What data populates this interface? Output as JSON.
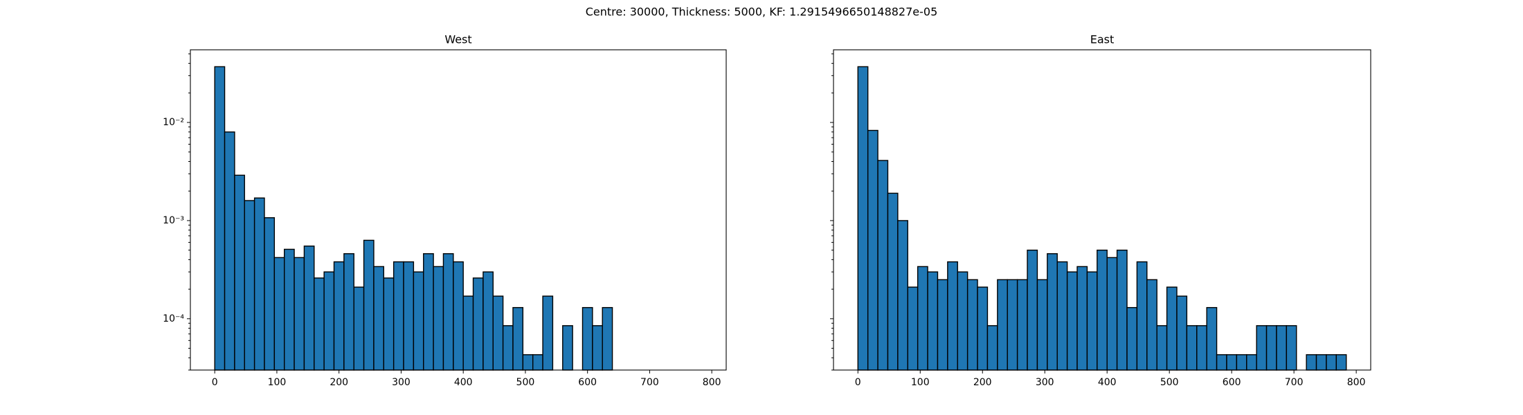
{
  "title": "Centre: 30000, Thickness: 5000, KF: 1.2915496650148827e-05",
  "chart_data": [
    {
      "type": "histogram",
      "title": "West",
      "color": "#1f77b4",
      "edgecolor": "#000000",
      "log_y": true,
      "bins": [
        0,
        16,
        32,
        48,
        64,
        80,
        96,
        112,
        128,
        144,
        160,
        176,
        192,
        208,
        224,
        240,
        256,
        272,
        288,
        304,
        320,
        336,
        352,
        368,
        384,
        400,
        416,
        432,
        448,
        464,
        480,
        496,
        512,
        528,
        544,
        560,
        576,
        592,
        608,
        624,
        640
      ],
      "values": [
        0.037,
        0.008,
        0.0029,
        0.0016,
        0.0017,
        0.00107,
        0.00042,
        0.00051,
        0.00042,
        0.00055,
        0.00026,
        0.0003,
        0.00038,
        0.00046,
        0.00021,
        0.00063,
        0.00034,
        0.00026,
        0.00038,
        0.00038,
        0.0003,
        0.00046,
        0.00034,
        0.00046,
        0.00038,
        0.00017,
        0.00026,
        0.0003,
        0.00017,
        8.5e-05,
        0.00013,
        4.3e-05,
        4.3e-05,
        0.00017,
        0,
        8.5e-05,
        0,
        0.00013,
        8.5e-05,
        0.00013
      ],
      "xlim": [
        -39.2,
        823.2
      ],
      "xticks": [
        0,
        100,
        200,
        300,
        400,
        500,
        600,
        700,
        800
      ],
      "ylim": [
        3e-05,
        0.055
      ],
      "yticks": [
        {
          "value": 0.0001,
          "label": "10⁻⁴"
        },
        {
          "value": 0.001,
          "label": "10⁻³"
        },
        {
          "value": 0.01,
          "label": "10⁻²"
        }
      ]
    },
    {
      "type": "histogram",
      "title": "East",
      "color": "#1f77b4",
      "edgecolor": "#000000",
      "log_y": true,
      "bins": [
        0,
        16,
        32,
        48,
        64,
        80,
        96,
        112,
        128,
        144,
        160,
        176,
        192,
        208,
        224,
        240,
        256,
        272,
        288,
        304,
        320,
        336,
        352,
        368,
        384,
        400,
        416,
        432,
        448,
        464,
        480,
        496,
        512,
        528,
        544,
        560,
        576,
        592,
        608,
        624,
        640,
        656,
        672,
        688,
        704,
        720,
        736,
        752,
        768,
        784
      ],
      "values": [
        0.037,
        0.0083,
        0.0041,
        0.0019,
        0.001,
        0.00021,
        0.00034,
        0.0003,
        0.00025,
        0.00038,
        0.0003,
        0.00025,
        0.00021,
        8.5e-05,
        0.00025,
        0.00025,
        0.00025,
        0.0005,
        0.00025,
        0.00046,
        0.00038,
        0.0003,
        0.00034,
        0.0003,
        0.0005,
        0.00042,
        0.0005,
        0.00013,
        0.00038,
        0.00025,
        8.5e-05,
        0.00021,
        0.00017,
        8.5e-05,
        8.5e-05,
        0.00013,
        4.3e-05,
        4.3e-05,
        4.3e-05,
        4.3e-05,
        8.5e-05,
        8.5e-05,
        8.5e-05,
        8.5e-05,
        0,
        4.3e-05,
        4.3e-05,
        4.3e-05,
        4.3e-05
      ],
      "xlim": [
        -39.2,
        823.2
      ],
      "xticks": [
        0,
        100,
        200,
        300,
        400,
        500,
        600,
        700,
        800
      ],
      "ylim": [
        3e-05,
        0.055
      ],
      "yticks": [
        0.0001,
        0.001,
        0.01
      ],
      "ytick_labels": false
    }
  ]
}
